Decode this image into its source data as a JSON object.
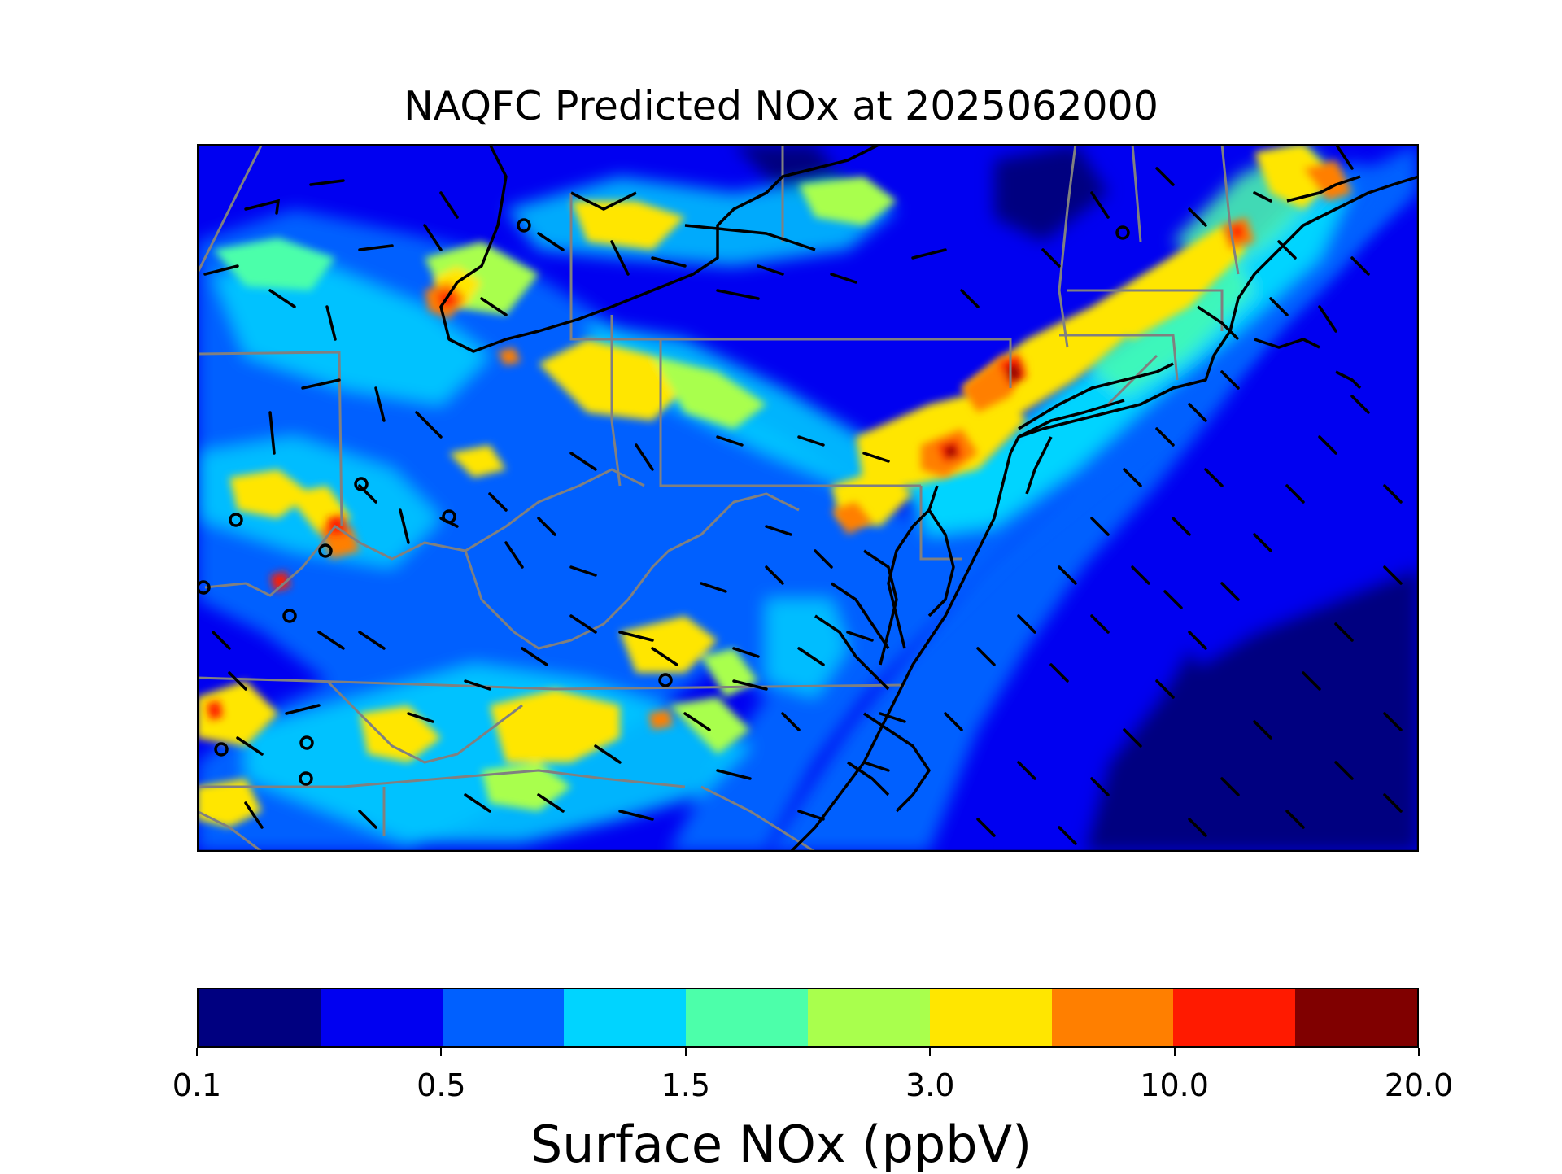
{
  "title": "NAQFC Predicted NOx at 2025062000",
  "colorbar": {
    "label": "Surface NOx (ppbV)",
    "tick_labels": [
      "0.1",
      "0.5",
      "1.5",
      "3.0",
      "10.0",
      "20.0"
    ],
    "colors": [
      "#000080",
      "#0000f1",
      "#0060ff",
      "#00d4ff",
      "#4cffaa",
      "#a9ff4d",
      "#ffe600",
      "#ff7f00",
      "#ff1a00",
      "#800000"
    ]
  },
  "map": {
    "region": "Mid-Atlantic / Northeast United States",
    "background_level_color": "#0000f1",
    "ocean_level_color": "#0060ff",
    "overlay": [
      "wind barbs",
      "calm-wind circles",
      "state boundaries",
      "coastlines"
    ],
    "line_colors": {
      "state_boundary": "#808080",
      "coastline": "#000000",
      "wind_barb": "#000000"
    }
  }
}
